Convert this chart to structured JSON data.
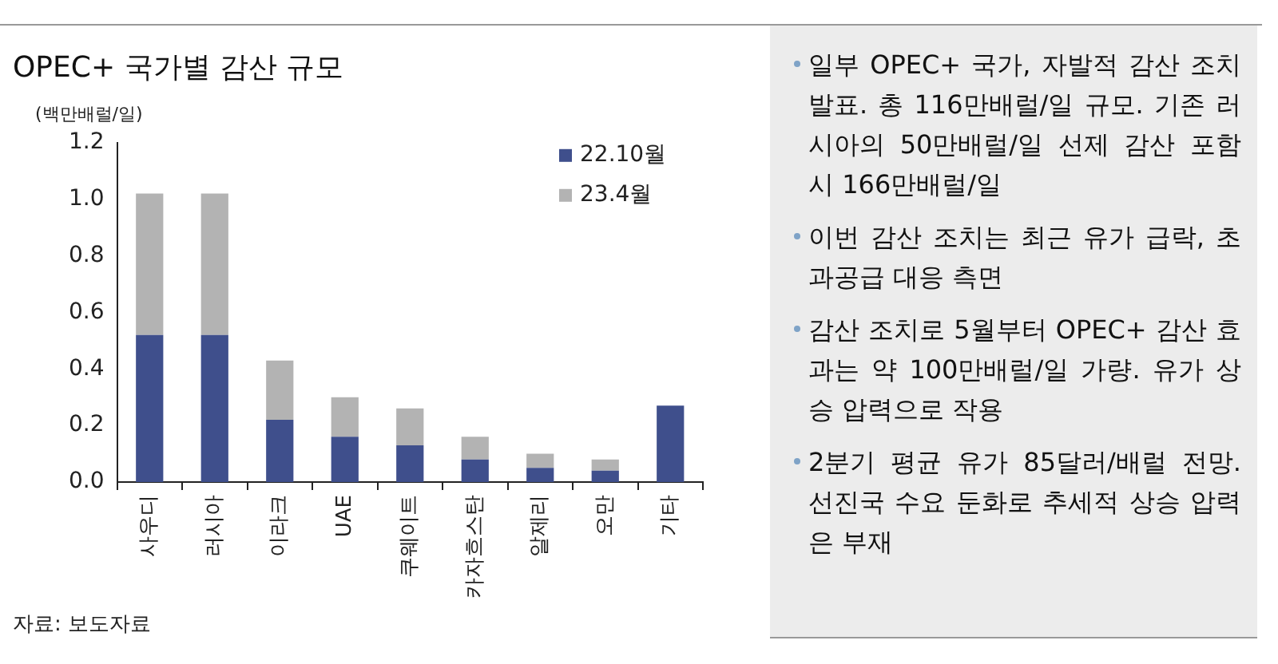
{
  "chart_data": [
    {
      "type": "bar",
      "title": "OPEC+ 국가별 감산 규모",
      "ylabel": "(백만배럴/일)",
      "categories": [
        "사우디",
        "러시아",
        "이라크",
        "UAE",
        "쿠웨이트",
        "카자흐스탄",
        "알제리",
        "오만",
        "기타"
      ],
      "series": [
        {
          "name": "22.10월",
          "color": "#3f4f8c",
          "values": [
            0.52,
            0.52,
            0.22,
            0.16,
            0.13,
            0.08,
            0.05,
            0.04,
            0.27
          ]
        },
        {
          "name": "23.4월",
          "color": "#b3b3b3",
          "values": [
            0.5,
            0.5,
            0.21,
            0.14,
            0.13,
            0.08,
            0.05,
            0.04,
            null
          ]
        }
      ],
      "stacked": true,
      "ylim": [
        0,
        1.2
      ],
      "yticks": [
        {
          "value": 0,
          "label": "0.0"
        },
        {
          "value": 0.2,
          "label": "0.2"
        },
        {
          "value": 0.4,
          "label": "0.4"
        },
        {
          "value": 0.6,
          "label": "0.6"
        },
        {
          "value": 0.8,
          "label": "0.8"
        },
        {
          "value": 1,
          "label": "1.0"
        },
        {
          "value": 1.2,
          "label": "1.2"
        }
      ],
      "grid": false,
      "legend": "top right",
      "annotations": [
        "자료: 보도자료"
      ]
    },
    {
      "type": "other",
      "annotations": [
        "일부 OPEC+ 국가, 자발적 감산 조치 발표. 총 116만배럴/일 규모. 기존 러시아의 50만배럴/일 선제 감산 포함 시 166만배럴/일",
        "이번 감산 조치는 최근 유가 급락, 초과공급 대응 측면",
        "감산 조치로 5월부터 OPEC+ 감산 효과는 약 100만배럴/일 가량. 유가 상승 압력으로 작용",
        "2분기 평균 유가 85달러/배럴 전망. 선진국 수요 둔화로 추세적 상승 압력은 부재"
      ]
    }
  ]
}
